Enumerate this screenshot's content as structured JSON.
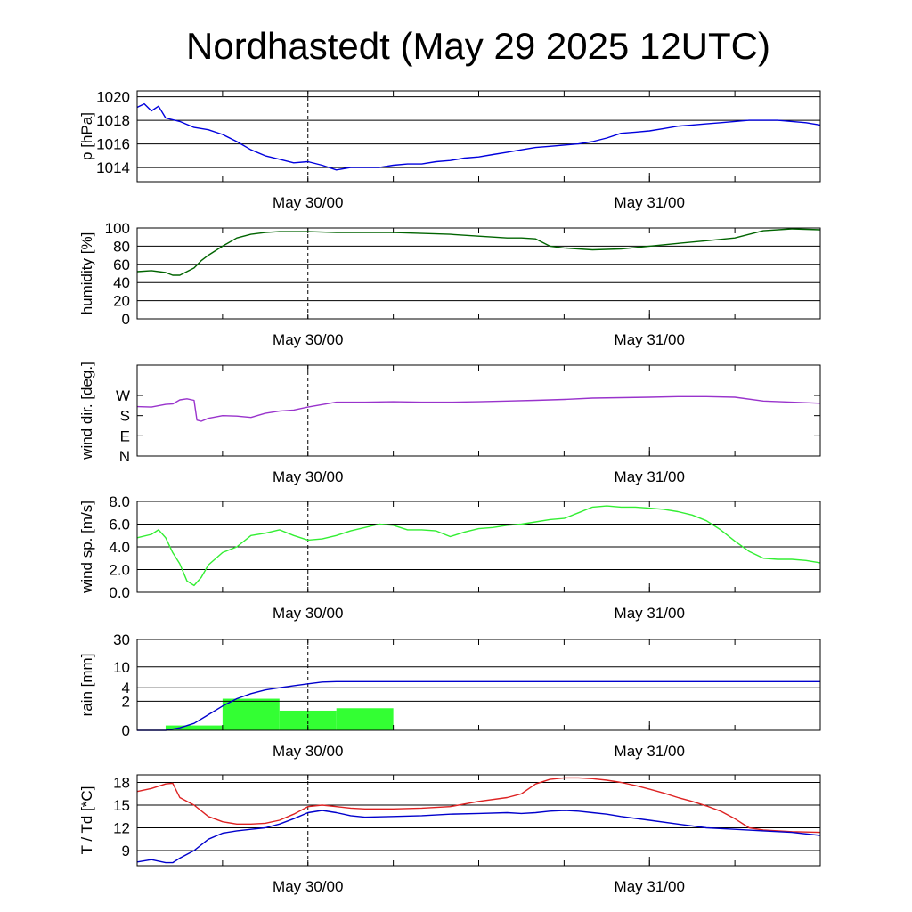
{
  "title": "Nordhastedt (May 29 2025 12UTC)",
  "chart_data": [
    {
      "type": "line",
      "ylabel": "p [hPa]",
      "ylim": [
        1012.8,
        1020.5
      ],
      "ytick_values": [
        1014,
        1016,
        1018,
        1020
      ],
      "ytick_labels": [
        "1014",
        "1016",
        "1018",
        "1020"
      ],
      "xtick_labels": [
        "May 30/00",
        "May 31/00"
      ],
      "xlim_hours": [
        -12,
        36
      ],
      "grid": true,
      "series": [
        {
          "color": "#0000dd",
          "x": [
            -12,
            -11.5,
            -11,
            -10.5,
            -10,
            -9,
            -8,
            -7,
            -6,
            -5,
            -4,
            -3,
            -2,
            -1,
            0,
            1,
            2,
            3,
            4,
            5,
            6,
            7,
            8,
            9,
            10,
            11,
            12,
            13,
            14,
            15,
            16,
            17,
            18,
            19,
            20,
            21,
            22,
            23,
            24,
            25,
            26,
            27,
            28,
            29,
            30,
            31,
            32,
            33,
            34,
            35,
            36
          ],
          "y": [
            1019.1,
            1019.4,
            1018.8,
            1019.2,
            1018.2,
            1017.9,
            1017.4,
            1017.2,
            1016.8,
            1016.2,
            1015.5,
            1015.0,
            1014.7,
            1014.4,
            1014.5,
            1014.2,
            1013.8,
            1014.0,
            1014.0,
            1014.0,
            1014.2,
            1014.3,
            1014.3,
            1014.5,
            1014.6,
            1014.8,
            1014.9,
            1015.1,
            1015.3,
            1015.5,
            1015.7,
            1015.8,
            1015.9,
            1016.0,
            1016.2,
            1016.5,
            1016.9,
            1017.0,
            1017.1,
            1017.3,
            1017.5,
            1017.6,
            1017.7,
            1017.8,
            1017.9,
            1018.0,
            1018.0,
            1018.0,
            1017.9,
            1017.8,
            1017.6
          ]
        }
      ]
    },
    {
      "type": "line",
      "ylabel": "humidity [%]",
      "ylim": [
        0,
        100
      ],
      "ytick_values": [
        0,
        20,
        40,
        60,
        80,
        100
      ],
      "ytick_labels": [
        "0",
        "20",
        "40",
        "60",
        "80",
        "100"
      ],
      "xtick_labels": [
        "May 30/00",
        "May 31/00"
      ],
      "xlim_hours": [
        -12,
        36
      ],
      "grid": true,
      "series": [
        {
          "color": "#006400",
          "x": [
            -12,
            -11,
            -10,
            -9.5,
            -9,
            -8,
            -7.5,
            -7,
            -6,
            -5,
            -4,
            -3,
            -2,
            -1,
            0,
            2,
            4,
            6,
            8,
            10,
            12,
            14,
            15,
            16,
            17,
            18,
            19,
            20,
            22,
            24,
            26,
            28,
            30,
            32,
            34,
            36
          ],
          "y": [
            52,
            53,
            51,
            48,
            48,
            56,
            64,
            70,
            80,
            89,
            93,
            95,
            96,
            96,
            96,
            95,
            95,
            95,
            94,
            93,
            91,
            89,
            89,
            88,
            80,
            78,
            77,
            76,
            77,
            80,
            83,
            86,
            89,
            97,
            99,
            98
          ]
        }
      ]
    },
    {
      "type": "line",
      "ylabel": "wind dir. [deg.]",
      "ylim": [
        0,
        405
      ],
      "ytick_values": [
        0,
        90,
        180,
        270
      ],
      "ytick_labels": [
        "N",
        "E",
        "S",
        "W"
      ],
      "xtick_labels": [
        "May 30/00",
        "May 31/00"
      ],
      "xlim_hours": [
        -12,
        36
      ],
      "grid": false,
      "series": [
        {
          "color": "#9933cc",
          "x": [
            -12,
            -11,
            -10,
            -9.5,
            -9,
            -8.5,
            -8,
            -7.8,
            -7.5,
            -7,
            -6,
            -5,
            -4,
            -3,
            -2,
            -1,
            0,
            2,
            4,
            6,
            8,
            10,
            12,
            14,
            16,
            18,
            20,
            22,
            24,
            26,
            28,
            30,
            32,
            34,
            36
          ],
          "y": [
            220,
            218,
            230,
            232,
            250,
            255,
            248,
            160,
            155,
            168,
            180,
            178,
            172,
            190,
            200,
            205,
            218,
            240,
            240,
            242,
            240,
            240,
            242,
            245,
            248,
            252,
            258,
            260,
            262,
            265,
            265,
            262,
            245,
            240,
            235
          ]
        }
      ]
    },
    {
      "type": "line",
      "ylabel": "wind sp. [m/s]",
      "ylim": [
        0,
        8
      ],
      "ytick_values": [
        0,
        2,
        4,
        6,
        8
      ],
      "ytick_labels": [
        "0.0",
        "2.0",
        "4.0",
        "6.0",
        "8.0"
      ],
      "xtick_labels": [
        "May 30/00",
        "May 31/00"
      ],
      "xlim_hours": [
        -12,
        36
      ],
      "grid": true,
      "series": [
        {
          "color": "#33ee33",
          "x": [
            -12,
            -11,
            -10.5,
            -10,
            -9.5,
            -9,
            -8.5,
            -8,
            -7.5,
            -7,
            -6,
            -5,
            -4,
            -3,
            -2,
            -1,
            0,
            1,
            2,
            3,
            4,
            5,
            6,
            7,
            8,
            9,
            10,
            11,
            12,
            13,
            14,
            15,
            16,
            17,
            18,
            19,
            20,
            21,
            22,
            23,
            24,
            25,
            26,
            27,
            28,
            29,
            30,
            31,
            32,
            33,
            34,
            35,
            36
          ],
          "y": [
            4.8,
            5.1,
            5.5,
            4.8,
            3.5,
            2.5,
            1.0,
            0.6,
            1.3,
            2.4,
            3.5,
            4.0,
            5.0,
            5.2,
            5.5,
            5.0,
            4.6,
            4.7,
            5.0,
            5.4,
            5.7,
            6.0,
            5.9,
            5.5,
            5.5,
            5.4,
            4.9,
            5.3,
            5.6,
            5.7,
            5.9,
            6.0,
            6.2,
            6.4,
            6.5,
            7.0,
            7.5,
            7.6,
            7.5,
            7.5,
            7.4,
            7.3,
            7.1,
            6.8,
            6.3,
            5.5,
            4.5,
            3.6,
            3.0,
            2.9,
            2.9,
            2.8,
            2.6
          ]
        }
      ]
    },
    {
      "type": "bar",
      "ylabel": "rain [mm]",
      "scale": "log1p",
      "ylim": [
        0,
        30
      ],
      "ytick_values": [
        0,
        2,
        4,
        10,
        30
      ],
      "ytick_labels": [
        "0",
        "2",
        "4",
        "10",
        "30"
      ],
      "xtick_labels": [
        "May 30/00",
        "May 31/00"
      ],
      "xlim_hours": [
        -12,
        36
      ],
      "grid": true,
      "bars": [
        {
          "x_start": -10,
          "x_end": -6,
          "value": 0.2
        },
        {
          "x_start": -6,
          "x_end": -2,
          "value": 2.3
        },
        {
          "x_start": -2,
          "x_end": 2,
          "value": 1.1
        },
        {
          "x_start": 2,
          "x_end": 6,
          "value": 1.3
        }
      ],
      "bar_color": "#33ff33",
      "series": [
        {
          "color": "#0000cc",
          "x": [
            -12,
            -10,
            -9,
            -8,
            -7,
            -6,
            -5,
            -4,
            -3,
            -2,
            -1,
            0,
            1,
            2,
            4,
            8,
            12,
            16,
            20,
            24,
            28,
            32,
            36
          ],
          "y": [
            0,
            0,
            0.1,
            0.3,
            0.8,
            1.5,
            2.3,
            3.0,
            3.6,
            4.0,
            4.4,
            4.8,
            5.2,
            5.3,
            5.3,
            5.3,
            5.3,
            5.3,
            5.3,
            5.3,
            5.3,
            5.3,
            5.3
          ]
        }
      ]
    },
    {
      "type": "line",
      "ylabel": "T / Td [*C]",
      "ylim": [
        7,
        19
      ],
      "ytick_values": [
        9,
        12,
        15,
        18
      ],
      "ytick_labels": [
        "9",
        "12",
        "15",
        "18"
      ],
      "xtick_labels": [
        "May 30/00",
        "May 31/00"
      ],
      "xlim_hours": [
        -12,
        36
      ],
      "grid": true,
      "series": [
        {
          "color": "#dd2222",
          "x": [
            -12,
            -11,
            -10,
            -9.5,
            -9,
            -8,
            -7,
            -6,
            -5,
            -4,
            -3,
            -2,
            -1,
            0,
            1,
            2,
            3,
            4,
            5,
            6,
            8,
            10,
            12,
            14,
            15,
            16,
            17,
            18,
            19,
            20,
            21,
            22,
            23,
            24,
            25,
            26,
            27,
            28,
            29,
            30,
            31,
            32,
            34,
            36
          ],
          "y": [
            16.8,
            17.2,
            17.8,
            17.9,
            16.0,
            15.0,
            13.5,
            12.8,
            12.5,
            12.5,
            12.6,
            13.0,
            13.8,
            14.8,
            15.0,
            14.8,
            14.6,
            14.5,
            14.5,
            14.5,
            14.6,
            14.8,
            15.5,
            16.0,
            16.5,
            17.8,
            18.4,
            18.6,
            18.6,
            18.5,
            18.3,
            18.0,
            17.6,
            17.1,
            16.6,
            16.0,
            15.5,
            14.9,
            14.2,
            13.2,
            12.0,
            11.7,
            11.5,
            11.4
          ]
        },
        {
          "color": "#0000cc",
          "x": [
            -12,
            -11,
            -10,
            -9.5,
            -9,
            -8,
            -7,
            -6,
            -5,
            -4,
            -3,
            -2,
            -1,
            0,
            1,
            2,
            3,
            4,
            6,
            8,
            10,
            12,
            14,
            15,
            16,
            17,
            18,
            19,
            20,
            21,
            22,
            24,
            26,
            28,
            30,
            32,
            34,
            36
          ],
          "y": [
            7.5,
            7.8,
            7.4,
            7.4,
            8.0,
            9.0,
            10.5,
            11.3,
            11.6,
            11.8,
            12.0,
            12.5,
            13.2,
            14.0,
            14.3,
            14.0,
            13.6,
            13.4,
            13.5,
            13.6,
            13.8,
            13.9,
            14.0,
            13.9,
            14.0,
            14.2,
            14.3,
            14.2,
            14.0,
            13.8,
            13.5,
            13.0,
            12.5,
            12.0,
            11.8,
            11.6,
            11.4,
            11.0
          ]
        }
      ]
    }
  ]
}
